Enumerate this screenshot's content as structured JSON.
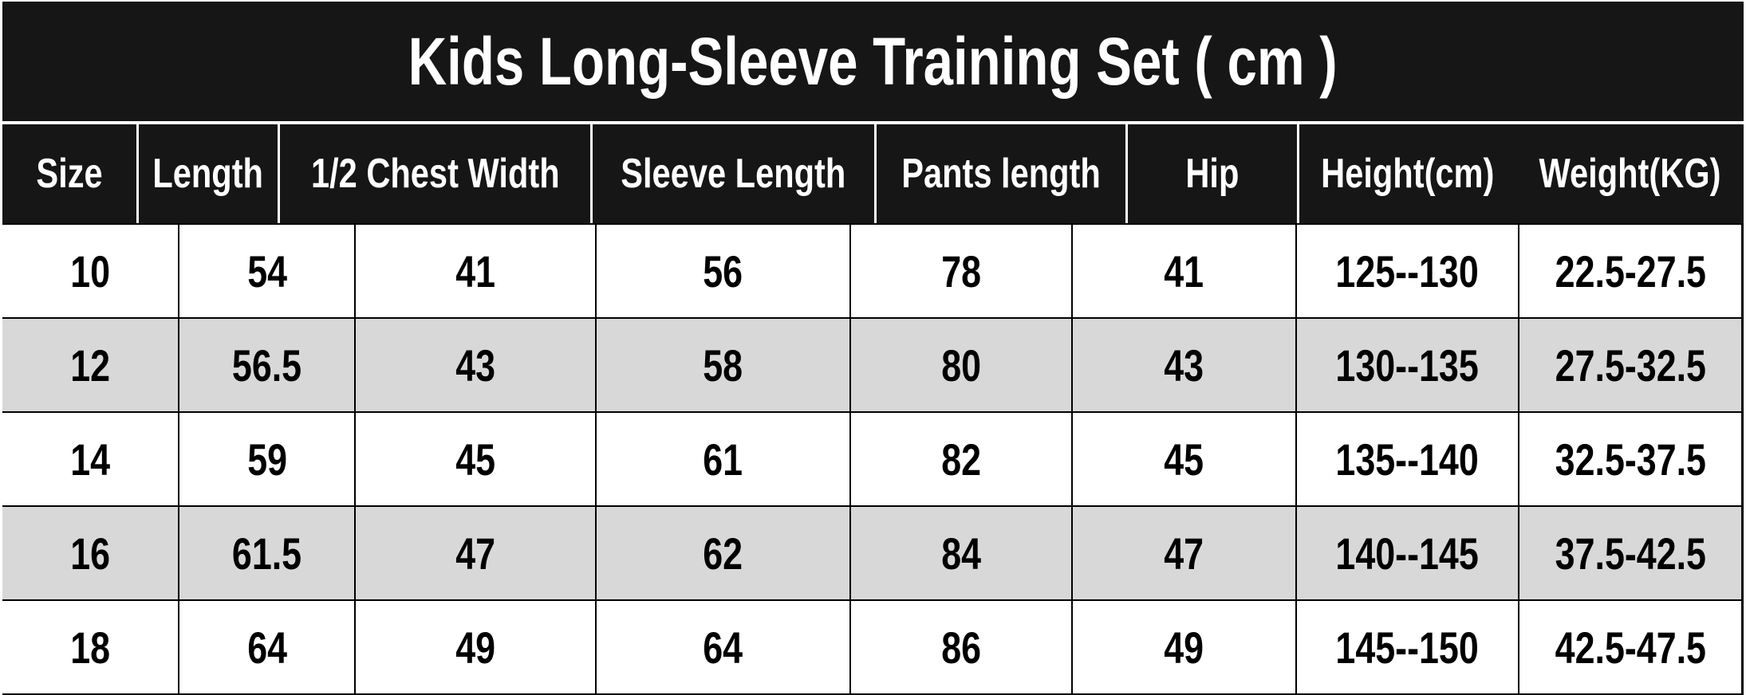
{
  "title": "Kids Long-Sleeve Training Set ( cm )",
  "colors": {
    "header_bg": "#161616",
    "header_text": "#ffffff",
    "row_bg": "#ffffff",
    "row_alt_bg": "#d8d8d8",
    "grid_line": "#000000",
    "body_text": "#000000",
    "header_separator": "#ffffff"
  },
  "chart_data": {
    "type": "table",
    "title": "Kids Long-Sleeve Training Set ( cm )",
    "columns": [
      "Size",
      "Length",
      "1/2 Chest Width",
      "Sleeve Length",
      "Pants length",
      "Hip",
      "Height(cm)",
      "Weight(KG)"
    ],
    "rows": [
      [
        "10",
        "54",
        "41",
        "56",
        "78",
        "41",
        "125--130",
        "22.5-27.5"
      ],
      [
        "12",
        "56.5",
        "43",
        "58",
        "80",
        "43",
        "130--135",
        "27.5-32.5"
      ],
      [
        "14",
        "59",
        "45",
        "61",
        "82",
        "45",
        "135--140",
        "32.5-37.5"
      ],
      [
        "16",
        "61.5",
        "47",
        "62",
        "84",
        "47",
        "140--145",
        "37.5-42.5"
      ],
      [
        "18",
        "64",
        "49",
        "64",
        "86",
        "49",
        "145--150",
        "42.5-47.5"
      ]
    ],
    "layout": {
      "header_separator_missing_between": [
        "Height(cm)",
        "Weight(KG)"
      ],
      "alternating_rows": true,
      "grid_on": true
    }
  }
}
